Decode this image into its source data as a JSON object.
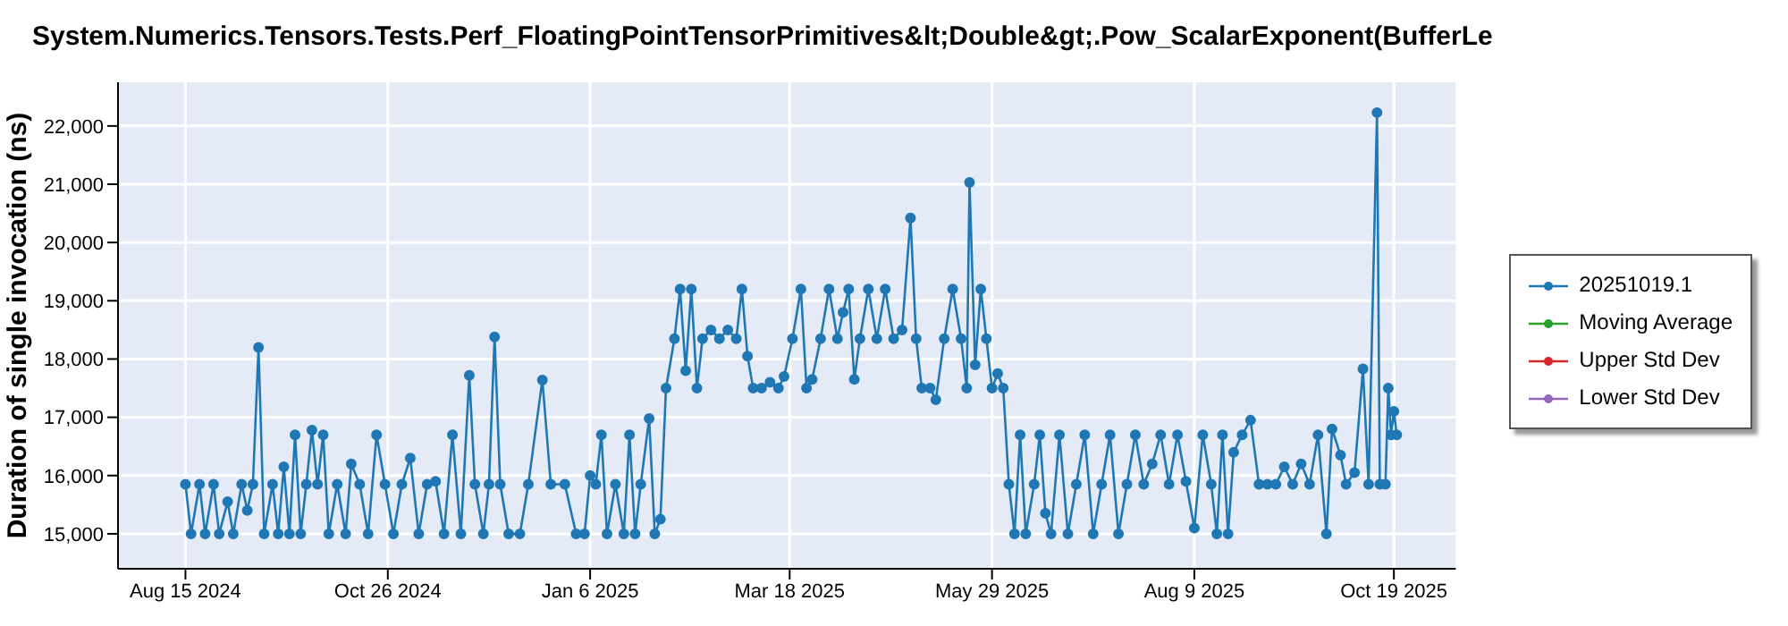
{
  "chart_data": {
    "type": "line",
    "title": "System.Numerics.Tensors.Tests.Perf_FloatingPointTensorPrimitives&lt;Double&gt;.Pow_ScalarExponent(BufferLe",
    "ylabel": "Duration of single invocation (ns)",
    "xlim": [
      "2024-07-22",
      "2025-11-10"
    ],
    "xticks": [
      {
        "value": "2024-08-15",
        "label": "Aug 15 2024"
      },
      {
        "value": "2024-10-26",
        "label": "Oct 26 2024"
      },
      {
        "value": "2025-01-06",
        "label": "Jan 6 2025"
      },
      {
        "value": "2025-03-18",
        "label": "Mar 18 2025"
      },
      {
        "value": "2025-05-29",
        "label": "May 29 2025"
      },
      {
        "value": "2025-08-09",
        "label": "Aug 9 2025"
      },
      {
        "value": "2025-10-19",
        "label": "Oct 19 2025"
      }
    ],
    "ylim": [
      14400,
      22750
    ],
    "yticks": [
      {
        "value": 15000,
        "label": "15,000"
      },
      {
        "value": 16000,
        "label": "16,000"
      },
      {
        "value": 17000,
        "label": "17,000"
      },
      {
        "value": 18000,
        "label": "18,000"
      },
      {
        "value": 19000,
        "label": "19,000"
      },
      {
        "value": 20000,
        "label": "20,000"
      },
      {
        "value": 21000,
        "label": "21,000"
      },
      {
        "value": 22000,
        "label": "22,000"
      }
    ],
    "grid": true,
    "legend": "right",
    "marker": "circle",
    "line_style": "solid",
    "series": [
      {
        "name": "20251019.1",
        "color": "#1f77b4",
        "x": [
          "2024-08-15",
          "2024-08-17",
          "2024-08-20",
          "2024-08-22",
          "2024-08-25",
          "2024-08-27",
          "2024-08-30",
          "2024-09-01",
          "2024-09-04",
          "2024-09-06",
          "2024-09-08",
          "2024-09-10",
          "2024-09-12",
          "2024-09-15",
          "2024-09-17",
          "2024-09-19",
          "2024-09-21",
          "2024-09-23",
          "2024-09-25",
          "2024-09-27",
          "2024-09-29",
          "2024-10-01",
          "2024-10-03",
          "2024-10-05",
          "2024-10-08",
          "2024-10-11",
          "2024-10-13",
          "2024-10-16",
          "2024-10-19",
          "2024-10-22",
          "2024-10-25",
          "2024-10-28",
          "2024-10-31",
          "2024-11-03",
          "2024-11-06",
          "2024-11-09",
          "2024-11-12",
          "2024-11-15",
          "2024-11-18",
          "2024-11-21",
          "2024-11-24",
          "2024-11-26",
          "2024-11-29",
          "2024-12-01",
          "2024-12-03",
          "2024-12-05",
          "2024-12-08",
          "2024-12-12",
          "2024-12-15",
          "2024-12-20",
          "2024-12-23",
          "2024-12-28",
          "2025-01-01",
          "2025-01-04",
          "2025-01-06",
          "2025-01-08",
          "2025-01-10",
          "2025-01-12",
          "2025-01-15",
          "2025-01-18",
          "2025-01-20",
          "2025-01-22",
          "2025-01-24",
          "2025-01-27",
          "2025-01-29",
          "2025-01-31",
          "2025-02-02",
          "2025-02-05",
          "2025-02-07",
          "2025-02-09",
          "2025-02-11",
          "2025-02-13",
          "2025-02-15",
          "2025-02-18",
          "2025-02-21",
          "2025-02-24",
          "2025-02-27",
          "2025-03-01",
          "2025-03-03",
          "2025-03-05",
          "2025-03-08",
          "2025-03-11",
          "2025-03-14",
          "2025-03-16",
          "2025-03-19",
          "2025-03-22",
          "2025-03-24",
          "2025-03-26",
          "2025-03-29",
          "2025-04-01",
          "2025-04-04",
          "2025-04-06",
          "2025-04-08",
          "2025-04-10",
          "2025-04-12",
          "2025-04-15",
          "2025-04-18",
          "2025-04-21",
          "2025-04-24",
          "2025-04-27",
          "2025-04-30",
          "2025-05-02",
          "2025-05-04",
          "2025-05-07",
          "2025-05-09",
          "2025-05-12",
          "2025-05-15",
          "2025-05-18",
          "2025-05-20",
          "2025-05-21",
          "2025-05-23",
          "2025-05-25",
          "2025-05-27",
          "2025-05-29",
          "2025-05-31",
          "2025-06-02",
          "2025-06-04",
          "2025-06-06",
          "2025-06-08",
          "2025-06-10",
          "2025-06-13",
          "2025-06-15",
          "2025-06-17",
          "2025-06-19",
          "2025-06-22",
          "2025-06-25",
          "2025-06-28",
          "2025-07-01",
          "2025-07-04",
          "2025-07-07",
          "2025-07-10",
          "2025-07-13",
          "2025-07-16",
          "2025-07-19",
          "2025-07-22",
          "2025-07-25",
          "2025-07-28",
          "2025-07-31",
          "2025-08-03",
          "2025-08-06",
          "2025-08-09",
          "2025-08-12",
          "2025-08-15",
          "2025-08-17",
          "2025-08-19",
          "2025-08-21",
          "2025-08-23",
          "2025-08-26",
          "2025-08-29",
          "2025-09-01",
          "2025-09-04",
          "2025-09-07",
          "2025-09-10",
          "2025-09-13",
          "2025-09-16",
          "2025-09-19",
          "2025-09-22",
          "2025-09-25",
          "2025-09-27",
          "2025-09-30",
          "2025-10-02",
          "2025-10-05",
          "2025-10-08",
          "2025-10-10",
          "2025-10-13",
          "2025-10-14",
          "2025-10-16",
          "2025-10-17",
          "2025-10-18",
          "2025-10-19",
          "2025-10-20"
        ],
        "values": [
          15850,
          15000,
          15850,
          15000,
          15850,
          15000,
          15550,
          15000,
          15850,
          15400,
          15850,
          18200,
          15000,
          15850,
          15000,
          16150,
          15000,
          16700,
          15000,
          15850,
          16780,
          15850,
          16700,
          15000,
          15850,
          15000,
          16200,
          15850,
          15000,
          16700,
          15850,
          15000,
          15850,
          16300,
          15000,
          15850,
          15900,
          15000,
          16700,
          15000,
          17720,
          15850,
          15000,
          15850,
          18380,
          15850,
          15000,
          15000,
          15850,
          17640,
          15850,
          15850,
          15000,
          15000,
          16000,
          15850,
          16700,
          15000,
          15850,
          15000,
          16700,
          15000,
          15850,
          16980,
          15000,
          15250,
          17500,
          18350,
          19200,
          17800,
          19200,
          17500,
          18350,
          18500,
          18350,
          18500,
          18350,
          19200,
          18050,
          17500,
          17500,
          17600,
          17500,
          17700,
          18350,
          19200,
          17500,
          17650,
          18350,
          19200,
          18350,
          18800,
          19200,
          17650,
          18350,
          19200,
          18350,
          19200,
          18350,
          18500,
          20420,
          18350,
          17500,
          17500,
          17300,
          18350,
          19200,
          18350,
          17500,
          21030,
          17900,
          19200,
          18350,
          17500,
          17750,
          17500,
          15850,
          15000,
          16700,
          15000,
          15850,
          16700,
          15350,
          15000,
          16700,
          15000,
          15850,
          16700,
          15000,
          15850,
          16700,
          15000,
          15850,
          16700,
          15850,
          16200,
          16700,
          15850,
          16700,
          15900,
          15100,
          16700,
          15850,
          15000,
          16700,
          15000,
          16400,
          16700,
          16950,
          15850,
          15850,
          15850,
          16150,
          15850,
          16200,
          15850,
          16700,
          15000,
          16800,
          16350,
          15850,
          16050,
          17830,
          15850,
          22230,
          15850,
          15850,
          17500,
          16700,
          17100,
          16700
        ]
      },
      {
        "name": "Moving Average",
        "color": "#2ca02c"
      },
      {
        "name": "Upper Std Dev",
        "color": "#d62728"
      },
      {
        "name": "Lower Std Dev",
        "color": "#9467bd"
      }
    ]
  }
}
